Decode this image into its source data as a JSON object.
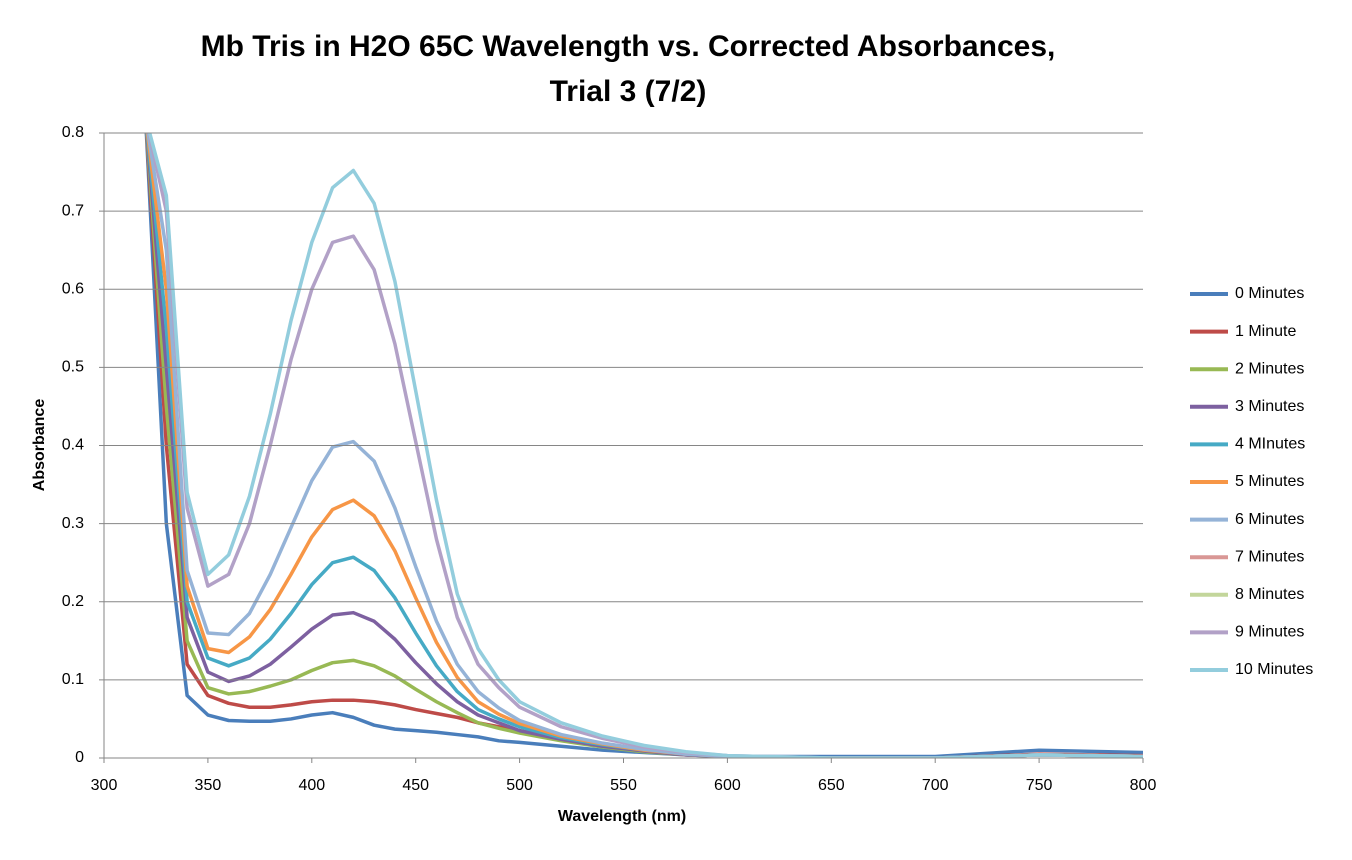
{
  "chart_data": {
    "type": "line",
    "title": [
      "Mb Tris in H2O 65C Wavelength vs. Corrected Absorbances,",
      "Trial 3 (7/2)"
    ],
    "x_label": "Wavelength (nm)",
    "y_label": "Absorbance",
    "x": [
      320,
      330,
      340,
      350,
      360,
      370,
      380,
      390,
      400,
      410,
      420,
      430,
      440,
      450,
      460,
      470,
      480,
      490,
      500,
      520,
      540,
      560,
      580,
      600,
      650,
      700,
      750,
      800
    ],
    "xlim": [
      300,
      800
    ],
    "xticks": [
      300,
      350,
      400,
      450,
      500,
      550,
      600,
      650,
      700,
      750,
      800
    ],
    "ylim": [
      0,
      0.8
    ],
    "yticks": [
      0,
      0.1,
      0.2,
      0.3,
      0.4,
      0.5,
      0.6,
      0.7,
      0.8
    ],
    "grid": true,
    "legend": "right",
    "series": [
      {
        "name": "0 Minutes",
        "color": "#4a7ebb",
        "values": [
          0.82,
          0.3,
          0.08,
          0.055,
          0.048,
          0.047,
          0.047,
          0.05,
          0.055,
          0.058,
          0.052,
          0.042,
          0.037,
          0.035,
          0.033,
          0.03,
          0.027,
          0.022,
          0.02,
          0.015,
          0.01,
          0.007,
          0.004,
          0.002,
          0.002,
          0.002,
          0.01,
          0.007
        ]
      },
      {
        "name": "1 Minute",
        "color": "#be4b48",
        "values": [
          0.82,
          0.4,
          0.12,
          0.08,
          0.07,
          0.065,
          0.065,
          0.068,
          0.072,
          0.074,
          0.074,
          0.072,
          0.068,
          0.062,
          0.057,
          0.052,
          0.045,
          0.04,
          0.035,
          0.025,
          0.015,
          0.01,
          0.005,
          0.002,
          0,
          0,
          0.005,
          0.003
        ]
      },
      {
        "name": "2 Minutes",
        "color": "#98b954",
        "values": [
          0.82,
          0.45,
          0.15,
          0.09,
          0.082,
          0.085,
          0.092,
          0.1,
          0.112,
          0.122,
          0.125,
          0.118,
          0.105,
          0.088,
          0.072,
          0.058,
          0.045,
          0.038,
          0.032,
          0.022,
          0.014,
          0.008,
          0.004,
          0.002,
          0,
          0,
          0.004,
          0.002
        ]
      },
      {
        "name": "3 Minutes",
        "color": "#7d60a0",
        "values": [
          0.82,
          0.5,
          0.18,
          0.11,
          0.098,
          0.105,
          0.12,
          0.142,
          0.165,
          0.183,
          0.186,
          0.175,
          0.152,
          0.122,
          0.095,
          0.072,
          0.055,
          0.045,
          0.035,
          0.024,
          0.015,
          0.009,
          0.004,
          0.002,
          0,
          0,
          0.004,
          0.002
        ]
      },
      {
        "name": "4 MInutes",
        "color": "#46aac5",
        "values": [
          0.82,
          0.55,
          0.2,
          0.128,
          0.118,
          0.128,
          0.152,
          0.185,
          0.222,
          0.25,
          0.257,
          0.24,
          0.205,
          0.16,
          0.118,
          0.085,
          0.062,
          0.05,
          0.04,
          0.026,
          0.017,
          0.01,
          0.005,
          0.002,
          0,
          0,
          0.004,
          0.002
        ]
      },
      {
        "name": "5 Minutes",
        "color": "#f79646",
        "values": [
          0.82,
          0.6,
          0.22,
          0.14,
          0.135,
          0.155,
          0.19,
          0.235,
          0.283,
          0.318,
          0.33,
          0.31,
          0.265,
          0.205,
          0.148,
          0.103,
          0.072,
          0.056,
          0.044,
          0.028,
          0.018,
          0.01,
          0.005,
          0.002,
          0,
          0,
          0.004,
          0.002
        ]
      },
      {
        "name": "6 Minutes",
        "color": "#95b3d7",
        "values": [
          0.82,
          0.65,
          0.24,
          0.16,
          0.158,
          0.185,
          0.235,
          0.295,
          0.355,
          0.398,
          0.405,
          0.38,
          0.32,
          0.245,
          0.175,
          0.12,
          0.085,
          0.064,
          0.048,
          0.03,
          0.019,
          0.011,
          0.005,
          0.002,
          0,
          0,
          0.004,
          0.002
        ]
      },
      {
        "name": "7 Minutes",
        "color": "#d99795",
        "values": [
          null,
          null,
          null,
          null,
          null,
          null,
          null,
          null,
          null,
          null,
          null,
          null,
          null,
          null,
          null,
          null,
          null,
          null,
          null,
          null,
          null,
          null,
          null,
          null,
          null,
          null,
          null,
          null
        ]
      },
      {
        "name": "8 Minutes",
        "color": "#c3d69b",
        "values": [
          null,
          null,
          null,
          null,
          null,
          null,
          null,
          null,
          null,
          null,
          null,
          null,
          null,
          null,
          null,
          null,
          null,
          null,
          null,
          null,
          null,
          null,
          null,
          null,
          null,
          null,
          null,
          null
        ]
      },
      {
        "name": "9 Minutes",
        "color": "#b2a1c7",
        "values": [
          0.82,
          0.7,
          0.32,
          0.22,
          0.235,
          0.3,
          0.4,
          0.51,
          0.6,
          0.66,
          0.668,
          0.625,
          0.53,
          0.405,
          0.28,
          0.18,
          0.12,
          0.09,
          0.065,
          0.04,
          0.025,
          0.014,
          0.007,
          0.003,
          0,
          0,
          0.004,
          0.002
        ]
      },
      {
        "name": "10 Minutes",
        "color": "#93cddd",
        "values": [
          0.82,
          0.72,
          0.34,
          0.235,
          0.26,
          0.335,
          0.44,
          0.56,
          0.66,
          0.73,
          0.752,
          0.71,
          0.61,
          0.47,
          0.33,
          0.21,
          0.14,
          0.1,
          0.072,
          0.045,
          0.028,
          0.016,
          0.008,
          0.003,
          0,
          0,
          0.004,
          0.002
        ]
      }
    ]
  }
}
